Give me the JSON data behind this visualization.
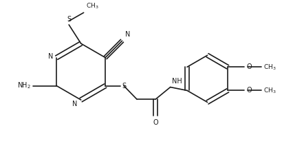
{
  "bg_color": "#ffffff",
  "line_color": "#1a1a1a",
  "line_width": 1.2,
  "font_size": 7.0,
  "fig_width": 4.42,
  "fig_height": 2.12,
  "xlim": [
    0,
    44.2
  ],
  "ylim": [
    0,
    21.2
  ]
}
